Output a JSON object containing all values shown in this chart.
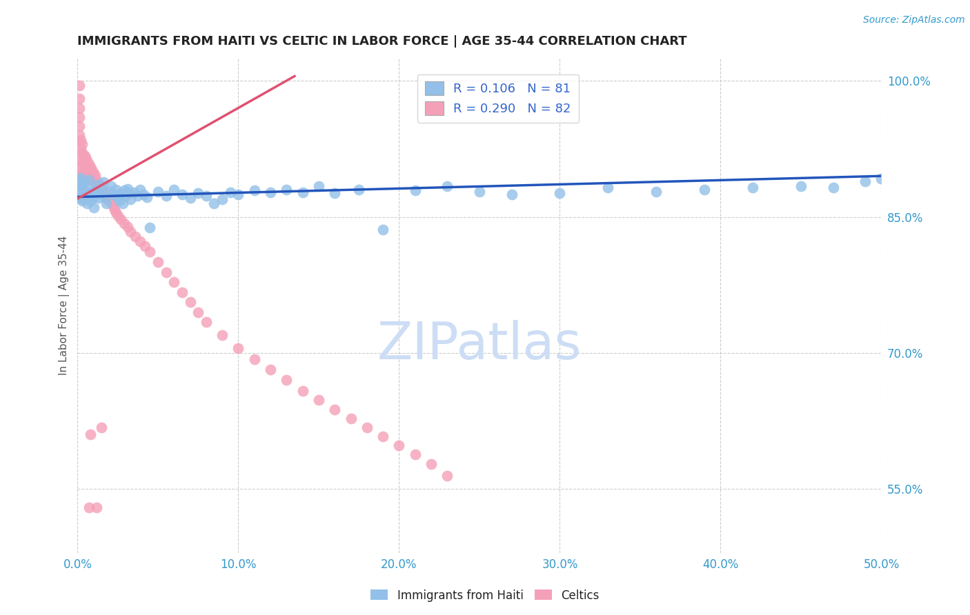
{
  "title": "IMMIGRANTS FROM HAITI VS CELTIC IN LABOR FORCE | AGE 35-44 CORRELATION CHART",
  "source": "Source: ZipAtlas.com",
  "ylabel": "In Labor Force | Age 35-44",
  "xlim": [
    0.0,
    0.5
  ],
  "ylim": [
    0.48,
    1.025
  ],
  "xtick_vals": [
    0.0,
    0.1,
    0.2,
    0.3,
    0.4,
    0.5
  ],
  "xtick_labels": [
    "0.0%",
    "10.0%",
    "20.0%",
    "30.0%",
    "40.0%",
    "50.0%"
  ],
  "yticks_right": [
    1.0,
    0.85,
    0.7,
    0.55
  ],
  "ytick_labels_right": [
    "100.0%",
    "85.0%",
    "70.0%",
    "55.0%"
  ],
  "haiti_R": 0.106,
  "haiti_N": 81,
  "celtic_R": 0.29,
  "celtic_N": 82,
  "haiti_color": "#92c0e8",
  "celtic_color": "#f4a0b8",
  "haiti_line_color": "#2255bb",
  "celtic_line_color": "#e05070",
  "watermark": "ZIPatlas",
  "watermark_color": "#ccddf5",
  "background_color": "#ffffff",
  "haiti_x": [
    0.001,
    0.001,
    0.001,
    0.002,
    0.002,
    0.002,
    0.003,
    0.003,
    0.003,
    0.004,
    0.004,
    0.005,
    0.005,
    0.006,
    0.006,
    0.007,
    0.007,
    0.008,
    0.008,
    0.009,
    0.01,
    0.01,
    0.011,
    0.012,
    0.013,
    0.014,
    0.015,
    0.016,
    0.017,
    0.018,
    0.02,
    0.021,
    0.022,
    0.024,
    0.025,
    0.026,
    0.027,
    0.028,
    0.029,
    0.03,
    0.031,
    0.032,
    0.033,
    0.035,
    0.037,
    0.039,
    0.041,
    0.043,
    0.045,
    0.05,
    0.055,
    0.06,
    0.065,
    0.07,
    0.075,
    0.08,
    0.085,
    0.09,
    0.095,
    0.1,
    0.11,
    0.12,
    0.13,
    0.14,
    0.15,
    0.16,
    0.175,
    0.19,
    0.21,
    0.23,
    0.25,
    0.27,
    0.3,
    0.33,
    0.36,
    0.39,
    0.42,
    0.45,
    0.47,
    0.49,
    0.5
  ],
  "haiti_y": [
    0.88,
    0.872,
    0.89,
    0.883,
    0.87,
    0.893,
    0.876,
    0.885,
    0.868,
    0.879,
    0.888,
    0.875,
    0.87,
    0.882,
    0.865,
    0.876,
    0.891,
    0.873,
    0.868,
    0.877,
    0.872,
    0.86,
    0.879,
    0.885,
    0.871,
    0.876,
    0.882,
    0.888,
    0.872,
    0.865,
    0.878,
    0.884,
    0.875,
    0.88,
    0.872,
    0.868,
    0.876,
    0.865,
    0.879,
    0.873,
    0.881,
    0.876,
    0.869,
    0.877,
    0.873,
    0.88,
    0.875,
    0.872,
    0.838,
    0.878,
    0.873,
    0.88,
    0.875,
    0.871,
    0.876,
    0.873,
    0.865,
    0.869,
    0.877,
    0.875,
    0.879,
    0.877,
    0.88,
    0.877,
    0.884,
    0.876,
    0.88,
    0.836,
    0.879,
    0.884,
    0.878,
    0.875,
    0.876,
    0.882,
    0.878,
    0.88,
    0.882,
    0.884,
    0.882,
    0.889,
    0.892
  ],
  "celtic_x": [
    0.001,
    0.001,
    0.001,
    0.001,
    0.001,
    0.001,
    0.002,
    0.002,
    0.002,
    0.002,
    0.002,
    0.002,
    0.003,
    0.003,
    0.003,
    0.003,
    0.004,
    0.004,
    0.004,
    0.005,
    0.005,
    0.005,
    0.006,
    0.006,
    0.006,
    0.007,
    0.007,
    0.008,
    0.008,
    0.009,
    0.009,
    0.01,
    0.01,
    0.011,
    0.012,
    0.013,
    0.014,
    0.015,
    0.016,
    0.017,
    0.018,
    0.019,
    0.02,
    0.021,
    0.022,
    0.023,
    0.024,
    0.025,
    0.027,
    0.029,
    0.031,
    0.033,
    0.036,
    0.039,
    0.042,
    0.045,
    0.05,
    0.055,
    0.06,
    0.065,
    0.07,
    0.075,
    0.08,
    0.09,
    0.1,
    0.11,
    0.12,
    0.13,
    0.14,
    0.15,
    0.16,
    0.17,
    0.18,
    0.19,
    0.2,
    0.21,
    0.22,
    0.23,
    0.015,
    0.008,
    0.012,
    0.007
  ],
  "celtic_y": [
    0.995,
    0.98,
    0.97,
    0.96,
    0.95,
    0.94,
    0.935,
    0.925,
    0.915,
    0.905,
    0.895,
    0.885,
    0.93,
    0.92,
    0.91,
    0.9,
    0.918,
    0.908,
    0.898,
    0.916,
    0.906,
    0.896,
    0.912,
    0.902,
    0.892,
    0.908,
    0.898,
    0.905,
    0.895,
    0.902,
    0.892,
    0.898,
    0.888,
    0.895,
    0.89,
    0.887,
    0.884,
    0.881,
    0.878,
    0.875,
    0.871,
    0.868,
    0.871,
    0.866,
    0.862,
    0.858,
    0.855,
    0.851,
    0.847,
    0.843,
    0.839,
    0.834,
    0.828,
    0.823,
    0.818,
    0.812,
    0.8,
    0.789,
    0.778,
    0.767,
    0.756,
    0.745,
    0.734,
    0.72,
    0.705,
    0.693,
    0.682,
    0.67,
    0.658,
    0.648,
    0.638,
    0.628,
    0.618,
    0.608,
    0.598,
    0.588,
    0.578,
    0.565,
    0.618,
    0.61,
    0.53,
    0.53
  ],
  "haiti_line_x": [
    0.0,
    0.5
  ],
  "haiti_line_y": [
    0.872,
    0.895
  ],
  "celtic_line_x": [
    0.0,
    0.135
  ],
  "celtic_line_y": [
    0.87,
    1.005
  ]
}
